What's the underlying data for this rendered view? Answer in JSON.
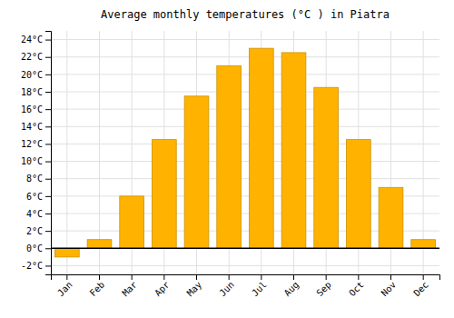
{
  "chart_data": {
    "type": "bar",
    "title": "Average monthly temperatures (°C ) in Piatra",
    "categories": [
      "Jan",
      "Feb",
      "Mar",
      "Apr",
      "May",
      "Jun",
      "Jul",
      "Aug",
      "Sep",
      "Oct",
      "Nov",
      "Dec"
    ],
    "values": [
      -1.0,
      1.0,
      6.0,
      12.5,
      17.5,
      21.0,
      23.0,
      22.5,
      18.5,
      12.5,
      7.0,
      1.0
    ],
    "color": "#FFB300",
    "ylim": [
      -3,
      25
    ],
    "yticks": [
      {
        "value": -2,
        "label": "-2°C"
      },
      {
        "value": 0,
        "label": "0°C"
      },
      {
        "value": 2,
        "label": "2°C"
      },
      {
        "value": 4,
        "label": "4°C"
      },
      {
        "value": 6,
        "label": "6°C"
      },
      {
        "value": 8,
        "label": "8°C"
      },
      {
        "value": 10,
        "label": "10°C"
      },
      {
        "value": 12,
        "label": "12°C"
      },
      {
        "value": 14,
        "label": "14°C"
      },
      {
        "value": 16,
        "label": "16°C"
      },
      {
        "value": 18,
        "label": "18°C"
      },
      {
        "value": 20,
        "label": "20°C"
      },
      {
        "value": 22,
        "label": "22°C"
      },
      {
        "value": 24,
        "label": "24°C"
      }
    ],
    "grid": true
  }
}
